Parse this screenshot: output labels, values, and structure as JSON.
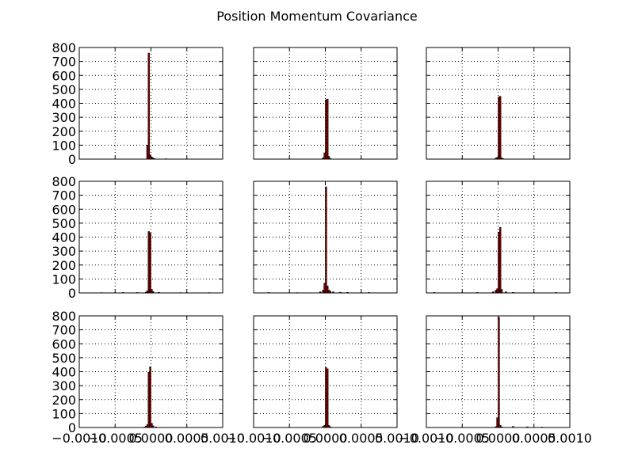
{
  "chart_data": {
    "type": "bar",
    "title": "Position Momentum Covariance",
    "xlim": [
      -0.001,
      0.001
    ],
    "ylim": [
      0,
      800
    ],
    "xticks": [
      -0.001,
      -0.0005,
      0.0,
      0.0005,
      0.001
    ],
    "xtick_labels": [
      "−0.0010",
      "−0.0005",
      "0.0000",
      "0.0005",
      "0.0010"
    ],
    "yticks": [
      0,
      100,
      200,
      300,
      400,
      500,
      600,
      700,
      800
    ],
    "ytick_labels": [
      "0",
      "100",
      "200",
      "300",
      "400",
      "500",
      "600",
      "700",
      "800"
    ],
    "grid": true,
    "bin_width": 2e-05,
    "subplots": [
      {
        "name": "r1c1",
        "bars": [
          {
            "x": -6e-05,
            "y": 100
          },
          {
            "x": -4e-05,
            "y": 760
          },
          {
            "x": -2e-05,
            "y": 30
          },
          {
            "x": 0.0,
            "y": 15
          },
          {
            "x": 2e-05,
            "y": 8
          },
          {
            "x": 4e-05,
            "y": 4
          },
          {
            "x": 0.0002,
            "y": 3
          }
        ]
      },
      {
        "name": "r1c2",
        "bars": [
          {
            "x": -4e-05,
            "y": 10
          },
          {
            "x": -2e-05,
            "y": 45
          },
          {
            "x": 0.0,
            "y": 425
          },
          {
            "x": 2e-05,
            "y": 430
          },
          {
            "x": 4e-05,
            "y": 20
          },
          {
            "x": 6e-05,
            "y": 5
          }
        ]
      },
      {
        "name": "r1c3",
        "bars": [
          {
            "x": -4e-05,
            "y": 8
          },
          {
            "x": -2e-05,
            "y": 12
          },
          {
            "x": 0.0,
            "y": 445
          },
          {
            "x": 2e-05,
            "y": 450
          },
          {
            "x": 4e-05,
            "y": 10
          },
          {
            "x": 6e-05,
            "y": 3
          }
        ]
      },
      {
        "name": "r2c1",
        "bars": [
          {
            "x": -0.0007,
            "y": 2
          },
          {
            "x": -0.0004,
            "y": 3
          },
          {
            "x": -0.0002,
            "y": 3
          },
          {
            "x": -8e-05,
            "y": 5
          },
          {
            "x": -6e-05,
            "y": 15
          },
          {
            "x": -4e-05,
            "y": 440
          },
          {
            "x": -2e-05,
            "y": 430
          },
          {
            "x": 0.0,
            "y": 25
          },
          {
            "x": 2e-05,
            "y": 10
          },
          {
            "x": 0.0001,
            "y": 4
          },
          {
            "x": 0.0004,
            "y": 2
          },
          {
            "x": 0.0008,
            "y": 2
          }
        ]
      },
      {
        "name": "r2c2",
        "bars": [
          {
            "x": -0.0008,
            "y": 3
          },
          {
            "x": -0.0004,
            "y": 2
          },
          {
            "x": -8e-05,
            "y": 8
          },
          {
            "x": -4e-05,
            "y": 20
          },
          {
            "x": -2e-05,
            "y": 70
          },
          {
            "x": 0.0,
            "y": 760
          },
          {
            "x": 2e-05,
            "y": 50
          },
          {
            "x": 4e-05,
            "y": 20
          },
          {
            "x": 6e-05,
            "y": 12
          },
          {
            "x": 0.0001,
            "y": 8
          },
          {
            "x": 0.0002,
            "y": 5
          },
          {
            "x": 0.0003,
            "y": 4
          },
          {
            "x": 0.0006,
            "y": 3
          }
        ]
      },
      {
        "name": "r2c3",
        "bars": [
          {
            "x": -0.0009,
            "y": 3
          },
          {
            "x": -0.0003,
            "y": 3
          },
          {
            "x": -8e-05,
            "y": 8
          },
          {
            "x": -4e-05,
            "y": 20
          },
          {
            "x": -2e-05,
            "y": 30
          },
          {
            "x": 0.0,
            "y": 435
          },
          {
            "x": 2e-05,
            "y": 470
          },
          {
            "x": 4e-05,
            "y": 25
          },
          {
            "x": 0.0001,
            "y": 8
          },
          {
            "x": 0.0002,
            "y": 4
          },
          {
            "x": 0.0008,
            "y": 3
          }
        ]
      },
      {
        "name": "r3c1",
        "bars": [
          {
            "x": -0.0001,
            "y": 3
          },
          {
            "x": -8e-05,
            "y": 10
          },
          {
            "x": -6e-05,
            "y": 20
          },
          {
            "x": -4e-05,
            "y": 395
          },
          {
            "x": -2e-05,
            "y": 435
          },
          {
            "x": 0.0,
            "y": 30
          },
          {
            "x": 2e-05,
            "y": 12
          },
          {
            "x": 6e-05,
            "y": 4
          }
        ]
      },
      {
        "name": "r3c2",
        "bars": [
          {
            "x": -4e-05,
            "y": 8
          },
          {
            "x": -2e-05,
            "y": 15
          },
          {
            "x": 0.0,
            "y": 430
          },
          {
            "x": 2e-05,
            "y": 420
          },
          {
            "x": 4e-05,
            "y": 15
          },
          {
            "x": 6e-05,
            "y": 5
          }
        ]
      },
      {
        "name": "r3c3",
        "bars": [
          {
            "x": -4e-05,
            "y": 6
          },
          {
            "x": -2e-05,
            "y": 70
          },
          {
            "x": 0.0,
            "y": 790
          },
          {
            "x": 2e-05,
            "y": 15
          },
          {
            "x": 4e-05,
            "y": 5
          },
          {
            "x": 0.0002,
            "y": 8
          },
          {
            "x": 0.0004,
            "y": 5
          },
          {
            "x": 0.0006,
            "y": 3
          }
        ]
      }
    ]
  }
}
